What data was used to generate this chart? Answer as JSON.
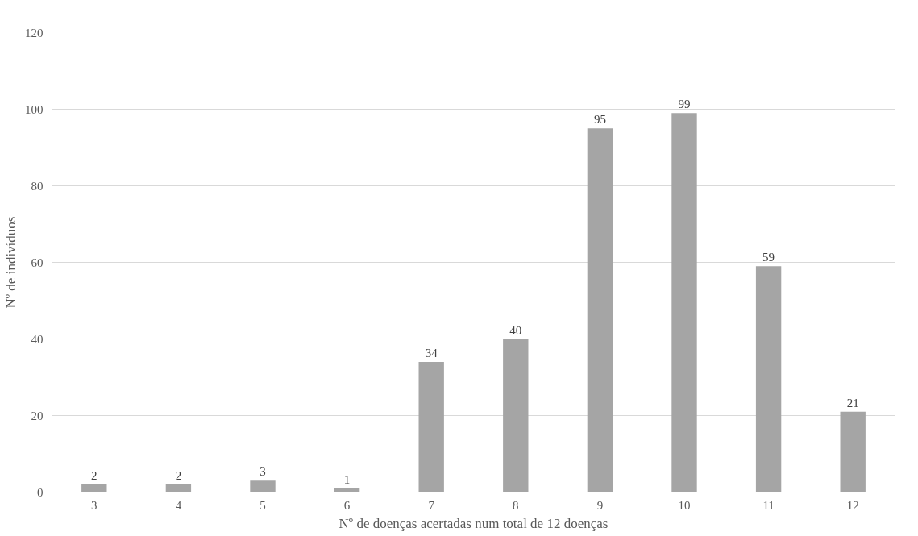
{
  "chart_data": {
    "type": "bar",
    "xlabel": "Nº de doenças acertadas num total de 12 doenças",
    "ylabel": "Nº de indivíduos",
    "categories": [
      "3",
      "4",
      "5",
      "6",
      "7",
      "8",
      "9",
      "10",
      "11",
      "12"
    ],
    "values": [
      2,
      2,
      3,
      1,
      34,
      40,
      95,
      99,
      59,
      21
    ],
    "color": "#a5a5a5",
    "ylim": [
      0,
      120
    ],
    "yticks": [
      0,
      20,
      40,
      60,
      80,
      100,
      120
    ],
    "grid": "y",
    "data_labels": true
  }
}
